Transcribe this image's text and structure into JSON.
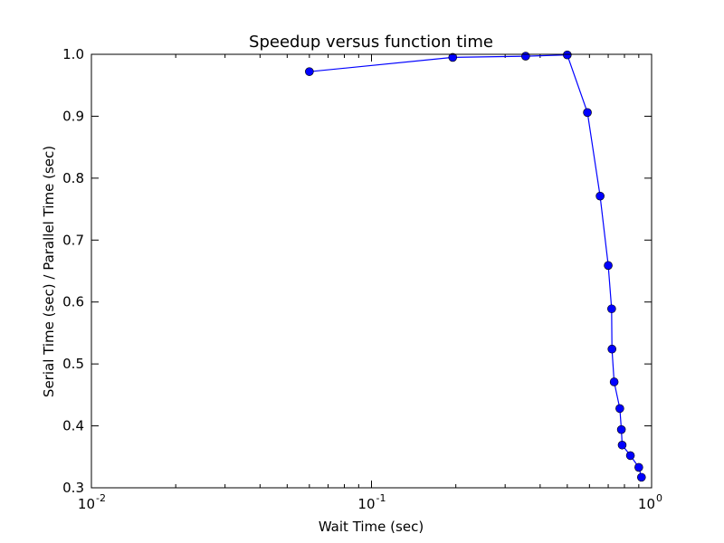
{
  "chart_data": {
    "type": "line",
    "title": "Speedup versus function time",
    "xlabel": "Wait Time (sec)",
    "ylabel": "Serial Time (sec) / Parallel Time (sec)",
    "xscale": "log",
    "xlim": [
      0.01,
      1.0
    ],
    "ylim": [
      0.3,
      1.0
    ],
    "x_ticks": [
      {
        "value": 0.01,
        "base": "10",
        "exp": "-2"
      },
      {
        "value": 0.1,
        "base": "10",
        "exp": "-1"
      },
      {
        "value": 1.0,
        "base": "10",
        "exp": "0"
      }
    ],
    "y_ticks": [
      {
        "value": 0.3,
        "label": "0.3"
      },
      {
        "value": 0.4,
        "label": "0.4"
      },
      {
        "value": 0.5,
        "label": "0.5"
      },
      {
        "value": 0.6,
        "label": "0.6"
      },
      {
        "value": 0.7,
        "label": "0.7"
      },
      {
        "value": 0.8,
        "label": "0.8"
      },
      {
        "value": 0.9,
        "label": "0.9"
      },
      {
        "value": 1.0,
        "label": "1.0"
      }
    ],
    "grid": false,
    "legend": "none",
    "series": [
      {
        "color": "#0000ff",
        "marker": "circle",
        "x": [
          0.06,
          0.195,
          0.355,
          0.5,
          0.59,
          0.655,
          0.7,
          0.72,
          0.722,
          0.735,
          0.77,
          0.78,
          0.785,
          0.84,
          0.9,
          0.92
        ],
        "y": [
          0.972,
          0.995,
          0.997,
          0.999,
          0.906,
          0.771,
          0.659,
          0.589,
          0.524,
          0.471,
          0.428,
          0.394,
          0.369,
          0.352,
          0.333,
          0.317
        ]
      }
    ]
  }
}
